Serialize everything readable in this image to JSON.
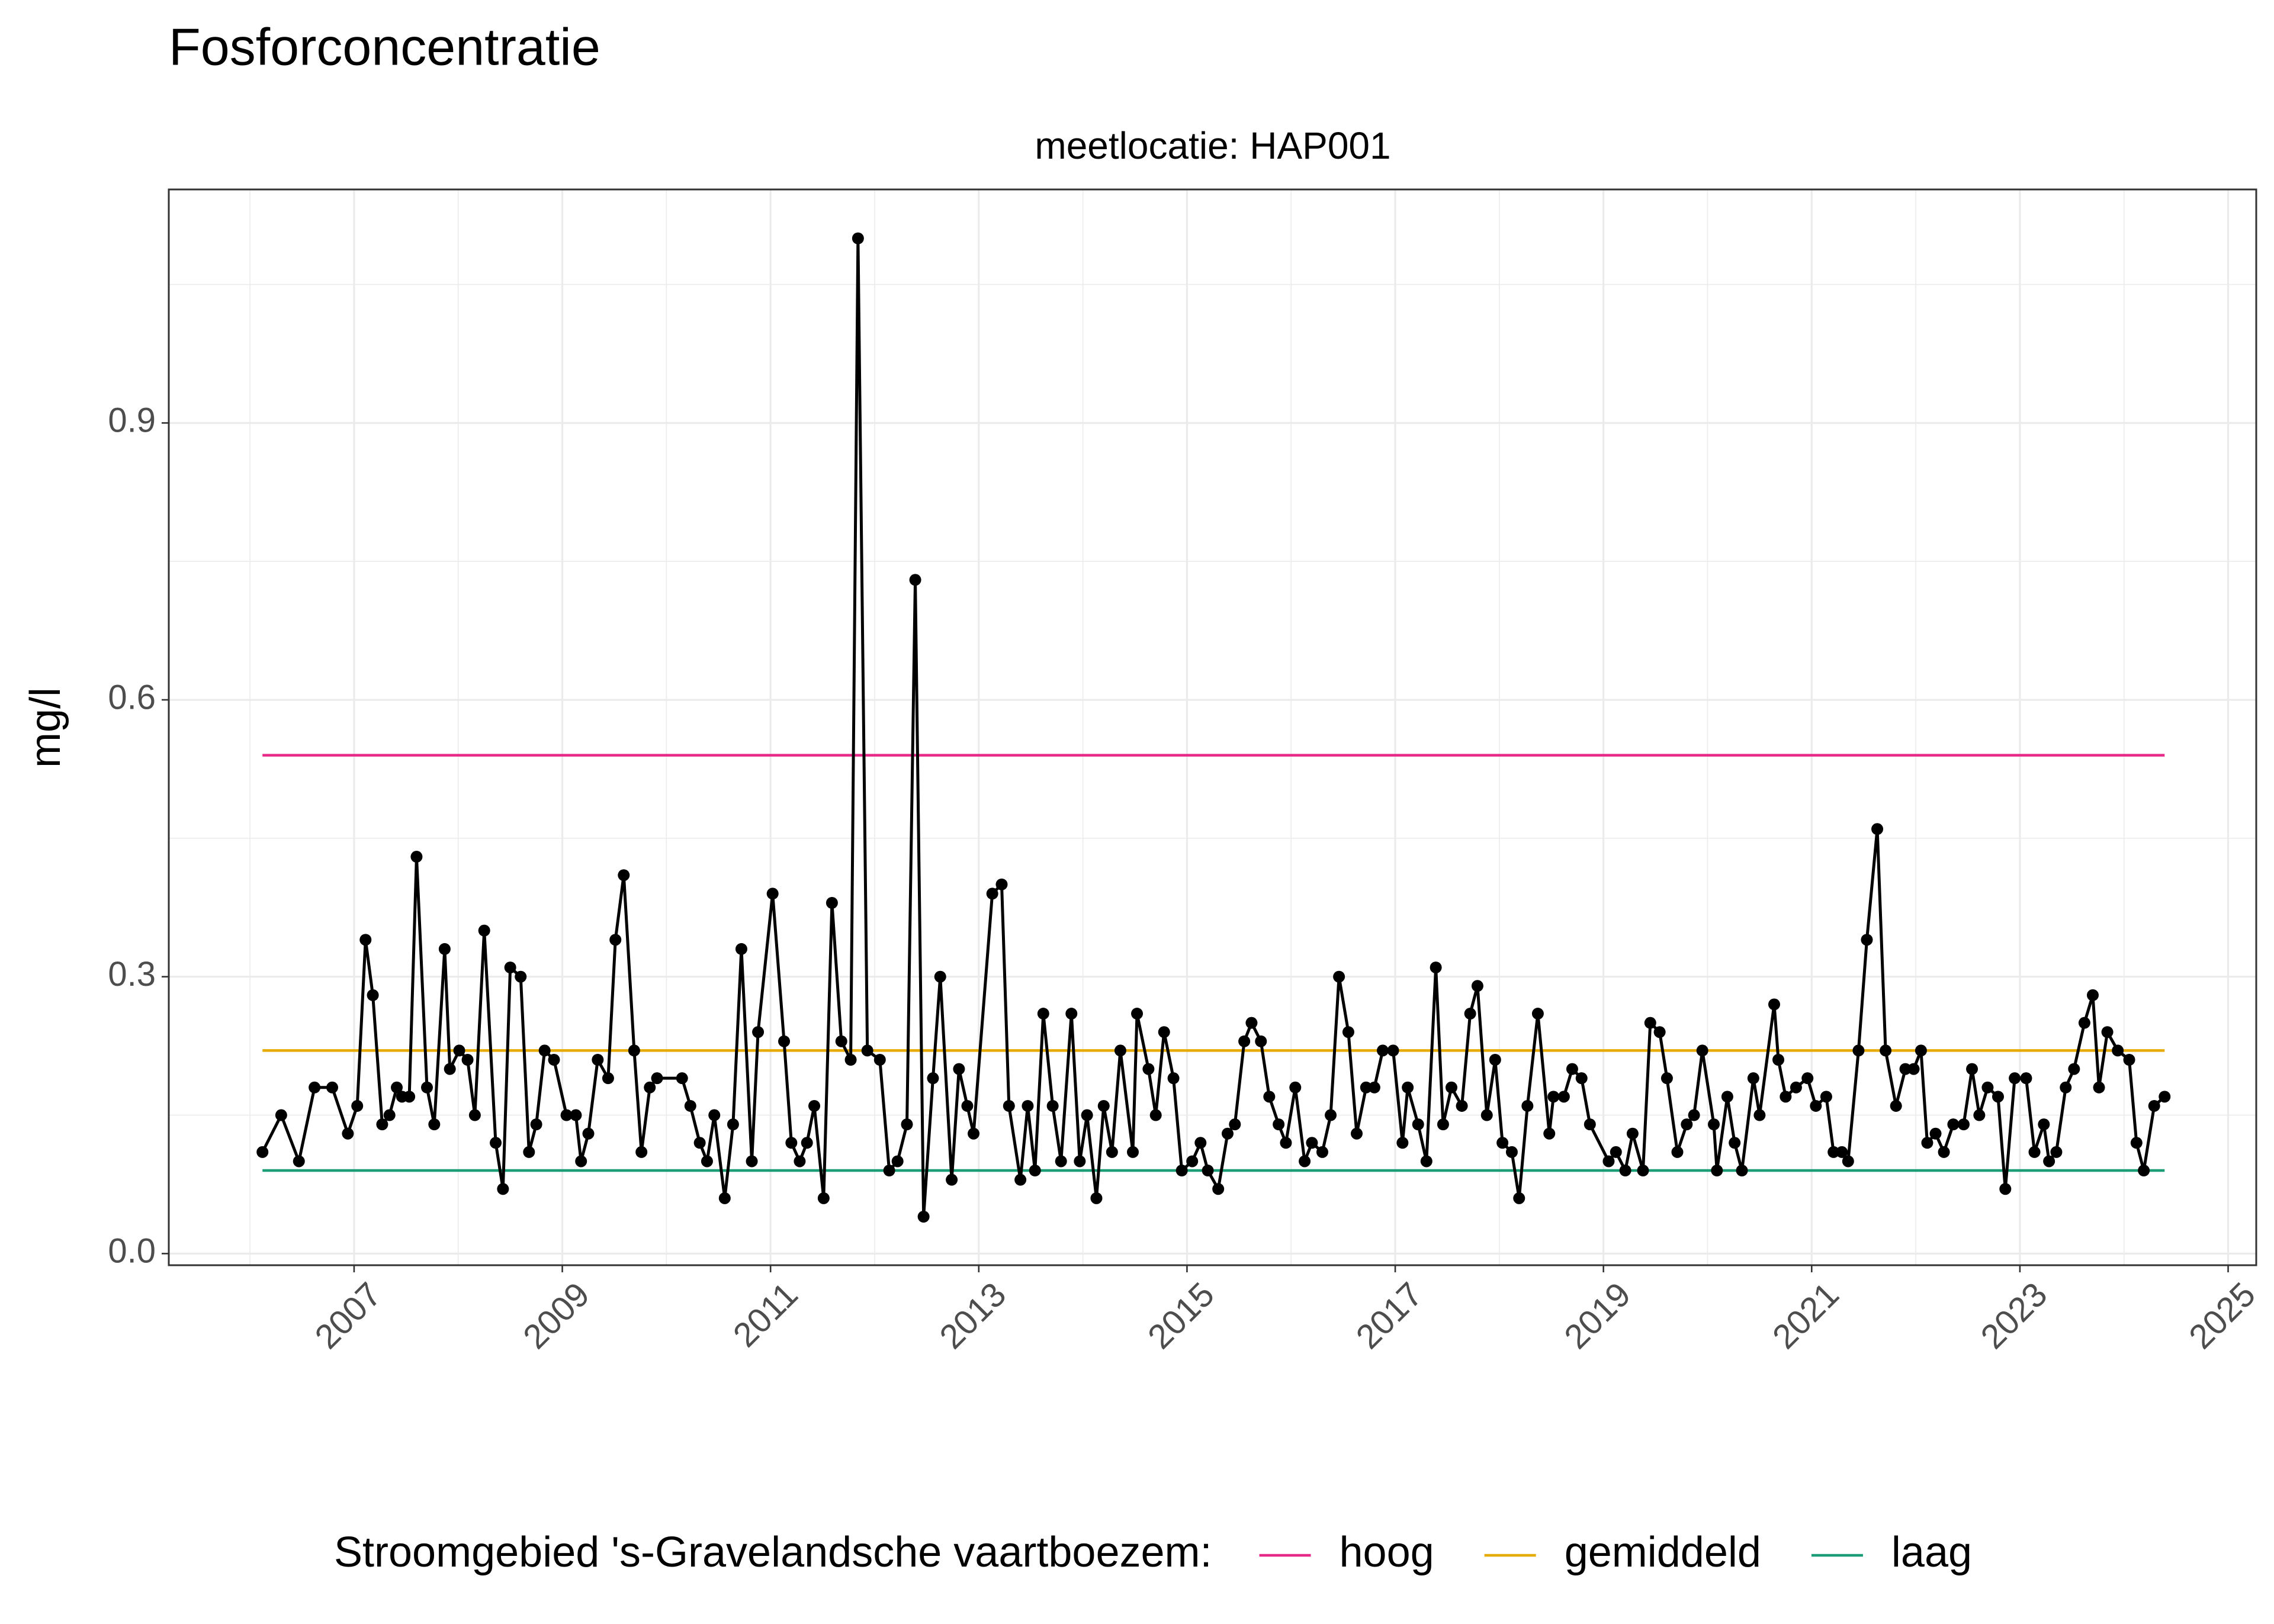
{
  "chart_data": {
    "type": "line",
    "title": "Fosforconcentratie",
    "subtitle": "meetlocatie: HAP001",
    "y_label": "mg/l",
    "legend_title": "Stroomgebied 's-Gravelandsche vaartboezem:",
    "color": "#000000",
    "grid": true,
    "xlim": [
      2005.22,
      2025.27
    ],
    "ylim": [
      -0.0126,
      1.153
    ],
    "xticks": [
      2007,
      2009,
      2011,
      2013,
      2015,
      2017,
      2019,
      2021,
      2023,
      2025
    ],
    "xminor_ticks": [
      2006,
      2008,
      2010,
      2012,
      2014,
      2016,
      2018,
      2020,
      2022,
      2024
    ],
    "yticks": [
      {
        "value": 0,
        "label": "0.0"
      },
      0.3,
      0.6,
      0.9
    ],
    "yminor_ticks": [
      0.15,
      0.45,
      0.75,
      1.05
    ],
    "reference_lines": [
      {
        "name": "hoog",
        "color": "#e7298a",
        "value": 0.54
      },
      {
        "name": "gemiddeld",
        "color": "#e6ab02",
        "value": 0.22
      },
      {
        "name": "laag",
        "color": "#1b9e77",
        "value": 0.09
      }
    ],
    "x": [
      2006.12,
      2006.3,
      2006.47,
      2006.62,
      2006.79,
      2006.94,
      2007.03,
      2007.11,
      2007.18,
      2007.27,
      2007.34,
      2007.41,
      2007.46,
      2007.53,
      2007.6,
      2007.7,
      2007.77,
      2007.87,
      2007.92,
      2008.01,
      2008.09,
      2008.16,
      2008.25,
      2008.36,
      2008.43,
      2008.5,
      2008.6,
      2008.68,
      2008.75,
      2008.83,
      2008.92,
      2009.04,
      2009.13,
      2009.18,
      2009.25,
      2009.34,
      2009.44,
      2009.51,
      2009.59,
      2009.69,
      2009.76,
      2009.84,
      2009.91,
      2010.15,
      2010.23,
      2010.32,
      2010.39,
      2010.46,
      2010.56,
      2010.64,
      2010.72,
      2010.82,
      2010.88,
      2011.02,
      2011.13,
      2011.2,
      2011.28,
      2011.35,
      2011.42,
      2011.51,
      2011.59,
      2011.68,
      2011.77,
      2011.84,
      2011.93,
      2012.05,
      2012.14,
      2012.22,
      2012.31,
      2012.39,
      2012.47,
      2012.56,
      2012.63,
      2012.74,
      2012.81,
      2012.89,
      2012.95,
      2013.13,
      2013.22,
      2013.29,
      2013.4,
      2013.47,
      2013.54,
      2013.62,
      2013.71,
      2013.79,
      2013.89,
      2013.97,
      2014.04,
      2014.13,
      2014.2,
      2014.28,
      2014.36,
      2014.48,
      2014.52,
      2014.63,
      2014.7,
      2014.78,
      2014.87,
      2014.95,
      2015.05,
      2015.13,
      2015.2,
      2015.3,
      2015.39,
      2015.46,
      2015.55,
      2015.62,
      2015.71,
      2015.79,
      2015.88,
      2015.95,
      2016.04,
      2016.13,
      2016.2,
      2016.3,
      2016.38,
      2016.46,
      2016.55,
      2016.63,
      2016.72,
      2016.8,
      2016.88,
      2016.98,
      2017.07,
      2017.12,
      2017.22,
      2017.3,
      2017.39,
      2017.46,
      2017.54,
      2017.64,
      2017.72,
      2017.79,
      2017.88,
      2017.96,
      2018.03,
      2018.12,
      2018.19,
      2018.27,
      2018.37,
      2018.48,
      2018.52,
      2018.62,
      2018.7,
      2018.79,
      2018.87,
      2019.05,
      2019.12,
      2019.21,
      2019.28,
      2019.38,
      2019.45,
      2019.54,
      2019.61,
      2019.71,
      2019.8,
      2019.87,
      2019.95,
      2020.06,
      2020.09,
      2020.19,
      2020.26,
      2020.33,
      2020.44,
      2020.5,
      2020.64,
      2020.68,
      2020.75,
      2020.85,
      2020.96,
      2021.04,
      2021.14,
      2021.21,
      2021.29,
      2021.35,
      2021.45,
      2021.53,
      2021.63,
      2021.71,
      2021.81,
      2021.9,
      2021.98,
      2022.05,
      2022.11,
      2022.19,
      2022.27,
      2022.36,
      2022.46,
      2022.54,
      2022.61,
      2022.69,
      2022.79,
      2022.86,
      2022.95,
      2023.06,
      2023.14,
      2023.23,
      2023.28,
      2023.35,
      2023.44,
      2023.52,
      2023.62,
      2023.7,
      2023.76,
      2023.84,
      2023.94,
      2024.05,
      2024.12,
      2024.19,
      2024.29,
      2024.39
    ],
    "values": [
      0.11,
      0.15,
      0.1,
      0.18,
      0.18,
      0.13,
      0.16,
      0.34,
      0.28,
      0.14,
      0.15,
      0.18,
      0.17,
      0.17,
      0.43,
      0.18,
      0.14,
      0.33,
      0.2,
      0.22,
      0.21,
      0.15,
      0.35,
      0.12,
      0.07,
      0.31,
      0.3,
      0.11,
      0.14,
      0.22,
      0.21,
      0.15,
      0.15,
      0.1,
      0.13,
      0.21,
      0.19,
      0.34,
      0.41,
      0.22,
      0.11,
      0.18,
      0.19,
      0.19,
      0.16,
      0.12,
      0.1,
      0.15,
      0.06,
      0.14,
      0.33,
      0.1,
      0.24,
      0.39,
      0.23,
      0.12,
      0.1,
      0.12,
      0.16,
      0.06,
      0.38,
      0.23,
      0.21,
      1.1,
      0.22,
      0.21,
      0.09,
      0.1,
      0.14,
      0.73,
      0.04,
      0.19,
      0.3,
      0.08,
      0.2,
      0.16,
      0.13,
      0.39,
      0.4,
      0.16,
      0.08,
      0.16,
      0.09,
      0.26,
      0.16,
      0.1,
      0.26,
      0.1,
      0.15,
      0.06,
      0.16,
      0.11,
      0.22,
      0.11,
      0.26,
      0.2,
      0.15,
      0.24,
      0.19,
      0.09,
      0.1,
      0.12,
      0.09,
      0.07,
      0.13,
      0.14,
      0.23,
      0.25,
      0.23,
      0.17,
      0.14,
      0.12,
      0.18,
      0.1,
      0.12,
      0.11,
      0.15,
      0.3,
      0.24,
      0.13,
      0.18,
      0.18,
      0.22,
      0.22,
      0.12,
      0.18,
      0.14,
      0.1,
      0.31,
      0.14,
      0.18,
      0.16,
      0.26,
      0.29,
      0.15,
      0.21,
      0.12,
      0.11,
      0.06,
      0.16,
      0.26,
      0.13,
      0.17,
      0.17,
      0.2,
      0.19,
      0.14,
      0.1,
      0.11,
      0.09,
      0.13,
      0.09,
      0.25,
      0.24,
      0.19,
      0.11,
      0.14,
      0.15,
      0.22,
      0.14,
      0.09,
      0.17,
      0.12,
      0.09,
      0.19,
      0.15,
      0.27,
      0.21,
      0.17,
      0.18,
      0.19,
      0.16,
      0.17,
      0.11,
      0.11,
      0.1,
      0.22,
      0.34,
      0.46,
      0.22,
      0.16,
      0.2,
      0.2,
      0.22,
      0.12,
      0.13,
      0.11,
      0.14,
      0.14,
      0.2,
      0.15,
      0.18,
      0.17,
      0.07,
      0.19,
      0.19,
      0.11,
      0.14,
      0.1,
      0.11,
      0.18,
      0.2,
      0.25,
      0.28,
      0.18,
      0.24,
      0.22,
      0.21,
      0.12,
      0.09,
      0.16,
      0.17
    ]
  }
}
